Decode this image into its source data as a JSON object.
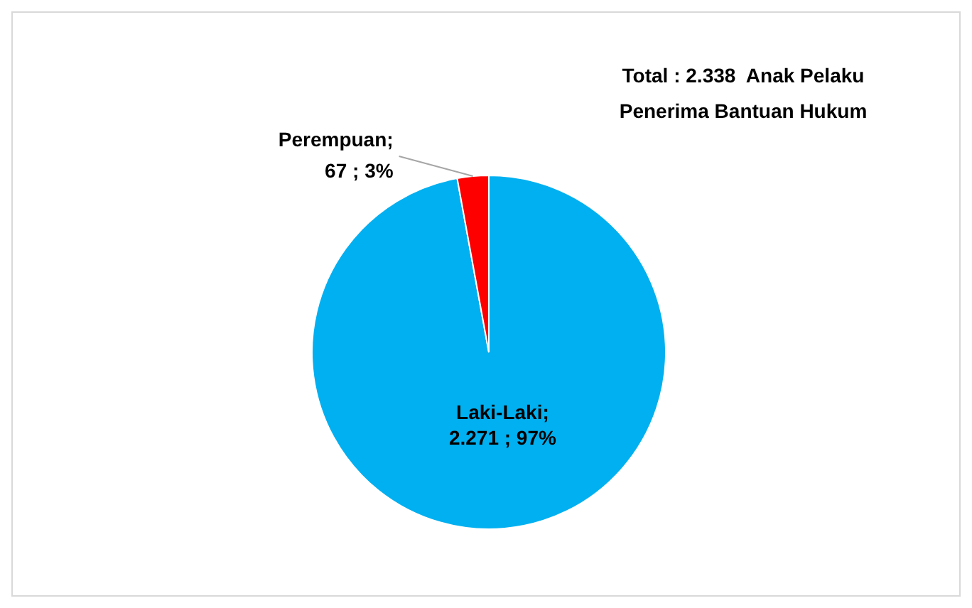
{
  "chart_data": {
    "type": "pie",
    "title": "Total : 2.338  Anak Pelaku\nPenerima Bantuan Hukum",
    "categories": [
      "Laki-Laki",
      "Perempuan"
    ],
    "values": [
      2271,
      67
    ],
    "colors": [
      "#00b0f0",
      "#ff0000"
    ],
    "value_labels": [
      ";\n2.271 ; 97%",
      ";\n67 ; 3%"
    ],
    "legend": false
  }
}
